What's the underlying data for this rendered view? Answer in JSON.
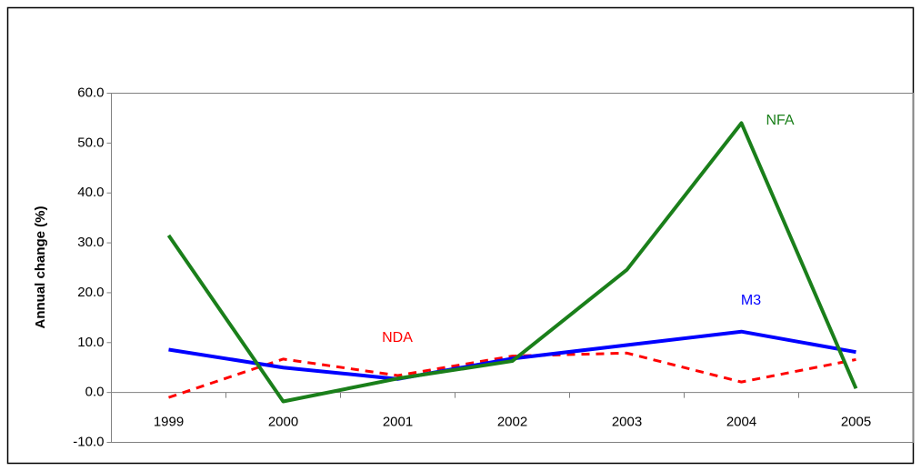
{
  "chart_data": {
    "type": "line",
    "y_label": "Annual change (%)",
    "categories": [
      "1999",
      "2000",
      "2001",
      "2002",
      "2003",
      "2004",
      "2005"
    ],
    "series": [
      {
        "name": "NFA",
        "color": "#1a7f1a",
        "values": [
          31.5,
          -1.8,
          2.8,
          6.3,
          24.6,
          54.0,
          0.8
        ]
      },
      {
        "name": "M3",
        "color": "#0000ff",
        "values": [
          8.6,
          5.0,
          2.7,
          6.8,
          9.5,
          12.2,
          8.1
        ]
      },
      {
        "name": "NDA",
        "color": "#ff0000",
        "dashed": true,
        "values": [
          -1.0,
          6.7,
          3.4,
          7.3,
          7.9,
          2.1,
          6.6
        ]
      }
    ],
    "ylim": [
      -10,
      60
    ],
    "yticks": [
      {
        "value": -10,
        "label": "-10.0"
      },
      {
        "value": 0,
        "label": "0.0"
      },
      {
        "value": 10,
        "label": "10.0"
      },
      {
        "value": 20,
        "label": "20.0"
      },
      {
        "value": 30,
        "label": "30.0"
      },
      {
        "value": 40,
        "label": "40.0"
      },
      {
        "value": 50,
        "label": "50.0"
      },
      {
        "value": 60,
        "label": "60.0"
      }
    ]
  }
}
